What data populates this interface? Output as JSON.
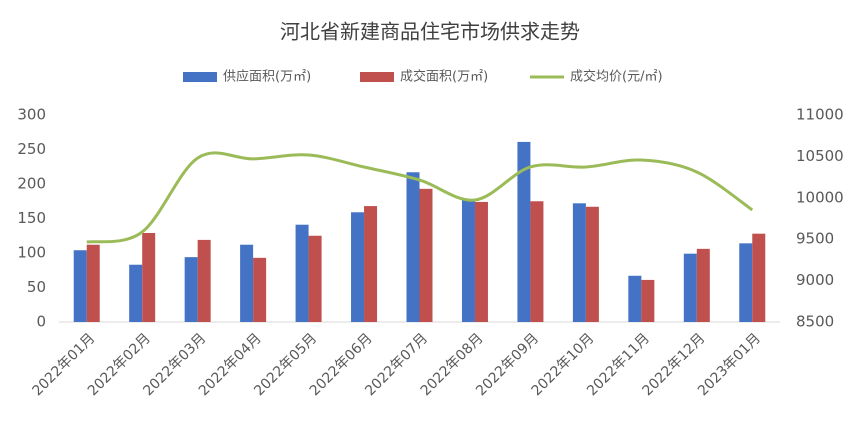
{
  "chart_data": {
    "type": "bar_line",
    "title": "河北省新建商品住宅市场供求走势",
    "categories": [
      "2022年01月",
      "2022年02月",
      "2022年03月",
      "2022年04月",
      "2022年05月",
      "2022年06月",
      "2022年07月",
      "2022年08月",
      "2022年09月",
      "2022年10月",
      "2022年11月",
      "2022年12月",
      "2023年01月"
    ],
    "series": [
      {
        "name": "供应面积(万㎡)",
        "color": "#4472c4",
        "type": "bar",
        "values": [
          104,
          83,
          94,
          112,
          141,
          159,
          217,
          177,
          261,
          172,
          67,
          99,
          114
        ]
      },
      {
        "name": "成交面积(万㎡)",
        "color": "#c0504d",
        "type": "bar",
        "values": [
          112,
          129,
          119,
          93,
          125,
          168,
          193,
          174,
          175,
          167,
          61,
          106,
          128
        ]
      },
      {
        "name": "成交均价(元/㎡)",
        "color": "#9bbb59",
        "type": "line",
        "axis": "y2",
        "values": [
          9466,
          9587,
          10481,
          10470,
          10517,
          10372,
          10215,
          9973,
          10372,
          10372,
          10456,
          10312,
          9853
        ]
      }
    ],
    "ylim": [
      0,
      300
    ],
    "yticks": [
      0,
      50,
      100,
      150,
      200,
      250,
      300
    ],
    "y2lim": [
      8500,
      11000
    ],
    "y2ticks": [
      8500,
      9000,
      9500,
      10000,
      10500,
      11000
    ],
    "grid": false,
    "legend": "top"
  }
}
